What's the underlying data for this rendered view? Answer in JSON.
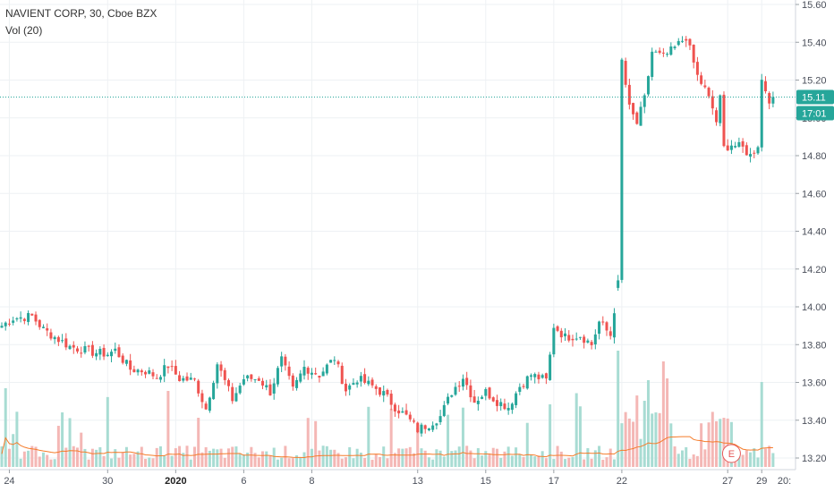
{
  "legend": {
    "symbol_line": "NAVIENT CORP, 30, Cboe BZX",
    "volume_line": "Vol (20)"
  },
  "badges": {
    "last_price": "15.11",
    "countdown": "17:01",
    "earnings": "E"
  },
  "colors": {
    "up": "#26a69a",
    "down": "#ef5350",
    "up_vol": "#a8dcd3",
    "down_vol": "#f4b7b5",
    "vol_ma": "#f57c2a",
    "price_line": "#26a69a"
  },
  "chart_data": {
    "type": "candlestick",
    "symbol": "NAVIENT CORP",
    "interval": "30",
    "exchange": "Cboe BZX",
    "last_price": 15.11,
    "ylim": [
      13.17,
      15.63
    ],
    "y_ticks": [
      {
        "value": 15.6,
        "label": "15.60"
      },
      {
        "value": 15.4,
        "label": "15.40"
      },
      {
        "value": 15.2,
        "label": "15.20"
      },
      {
        "value": 15.0,
        "label": "15.00"
      },
      {
        "value": 14.8,
        "label": "14.80"
      },
      {
        "value": 14.6,
        "label": "14.60"
      },
      {
        "value": 14.4,
        "label": "14.40"
      },
      {
        "value": 14.2,
        "label": "14.20"
      },
      {
        "value": 14.0,
        "label": "14.00"
      },
      {
        "value": 13.8,
        "label": "13.80"
      },
      {
        "value": 13.6,
        "label": "13.60"
      },
      {
        "value": 13.4,
        "label": "13.40"
      },
      {
        "value": 13.2,
        "label": "13.20"
      }
    ],
    "x_ticks": [
      {
        "label": "24",
        "bar": 2,
        "bold": false
      },
      {
        "label": "30",
        "bar": 28,
        "bold": false
      },
      {
        "label": "2020",
        "bar": 46,
        "bold": true
      },
      {
        "label": "6",
        "bar": 64,
        "bold": false
      },
      {
        "label": "8",
        "bar": 82,
        "bold": false
      },
      {
        "label": "13",
        "bar": 110,
        "bold": false
      },
      {
        "label": "15",
        "bar": 128,
        "bold": false
      },
      {
        "label": "17",
        "bar": 146,
        "bold": false
      },
      {
        "label": "22",
        "bar": 164,
        "bold": false
      },
      {
        "label": "27",
        "bar": 192,
        "bold": false
      },
      {
        "label": "29",
        "bar": 201,
        "bold": false
      },
      {
        "label": "20:",
        "bar": 207,
        "bold": false
      }
    ],
    "earnings_bar": 193,
    "volume_ma_period": 20,
    "anchors": [
      [
        0,
        13.9
      ],
      [
        3,
        13.94
      ],
      [
        8,
        13.95
      ],
      [
        11,
        13.88
      ],
      [
        14,
        13.84
      ],
      [
        18,
        13.79
      ],
      [
        24,
        13.76
      ],
      [
        28,
        13.75
      ],
      [
        30,
        13.77
      ],
      [
        34,
        13.67
      ],
      [
        38,
        13.66
      ],
      [
        41,
        13.63
      ],
      [
        44,
        13.69
      ],
      [
        47,
        13.62
      ],
      [
        51,
        13.61
      ],
      [
        54,
        13.46
      ],
      [
        57,
        13.7
      ],
      [
        61,
        13.51
      ],
      [
        64,
        13.62
      ],
      [
        68,
        13.62
      ],
      [
        71,
        13.55
      ],
      [
        74,
        13.72
      ],
      [
        77,
        13.56
      ],
      [
        80,
        13.68
      ],
      [
        84,
        13.64
      ],
      [
        88,
        13.73
      ],
      [
        91,
        13.56
      ],
      [
        94,
        13.62
      ],
      [
        98,
        13.58
      ],
      [
        101,
        13.54
      ],
      [
        104,
        13.47
      ],
      [
        107,
        13.42
      ],
      [
        110,
        13.35
      ],
      [
        113,
        13.38
      ],
      [
        116,
        13.42
      ],
      [
        119,
        13.55
      ],
      [
        122,
        13.63
      ],
      [
        125,
        13.5
      ],
      [
        128,
        13.55
      ],
      [
        131,
        13.5
      ],
      [
        134,
        13.47
      ],
      [
        137,
        13.58
      ],
      [
        140,
        13.64
      ],
      [
        144,
        13.61
      ],
      [
        145,
        13.74
      ],
      [
        146,
        13.9
      ],
      [
        149,
        13.84
      ],
      [
        153,
        13.85
      ],
      [
        156,
        13.8
      ],
      [
        158,
        13.92
      ],
      [
        161,
        13.85
      ],
      [
        163,
        14.12
      ],
      [
        164,
        15.3
      ],
      [
        166,
        15.05
      ],
      [
        168,
        14.97
      ],
      [
        170,
        15.1
      ],
      [
        172,
        15.35
      ],
      [
        175,
        15.32
      ],
      [
        178,
        15.37
      ],
      [
        181,
        15.43
      ],
      [
        184,
        15.22
      ],
      [
        186,
        15.15
      ],
      [
        188,
        15.05
      ],
      [
        189,
        14.98
      ],
      [
        190,
        15.1
      ],
      [
        191,
        14.84
      ],
      [
        193,
        14.86
      ],
      [
        196,
        14.84
      ],
      [
        198,
        14.8
      ],
      [
        200,
        14.86
      ],
      [
        201,
        15.2
      ],
      [
        203,
        15.1
      ],
      [
        204,
        15.11
      ]
    ],
    "series": [
      {
        "name": "NAVIENT CORP",
        "kind": "ohlc",
        "bars": 205
      },
      {
        "name": "Vol (20)",
        "kind": "volume"
      }
    ]
  }
}
